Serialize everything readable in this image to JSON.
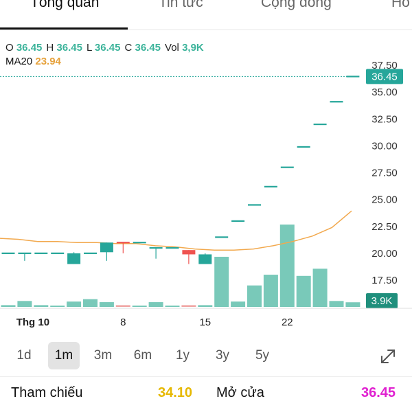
{
  "tabs": [
    {
      "label": "Tổng quan",
      "active": true
    },
    {
      "label": "Tin tức",
      "active": false
    },
    {
      "label": "Cộng đồng",
      "active": false
    },
    {
      "label": "Ho",
      "active": false
    }
  ],
  "ohlc": {
    "open_label": "O",
    "open": "36.45",
    "high_label": "H",
    "high": "36.45",
    "low_label": "L",
    "low": "36.45",
    "close_label": "C",
    "close": "36.45",
    "vol_label": "Vol",
    "vol": "3,9K"
  },
  "ma": {
    "label": "MA20",
    "value": "23.94"
  },
  "colors": {
    "up": "#26a69a",
    "up_volume": "#79c9b9",
    "down": "#ef5350",
    "down_volume": "#f1a7a6",
    "ma": "#f2a94e",
    "ohlc_value": "#3bb39a",
    "ref": "#e6b800",
    "open": "#e020d0"
  },
  "chart_data": {
    "type": "candlestick",
    "price_axis_ticks": [
      "37.50",
      "35.00",
      "32.50",
      "30.00",
      "27.50",
      "25.00",
      "22.50",
      "20.00",
      "17.50"
    ],
    "ylim": [
      16.4,
      38.3
    ],
    "x_tick_labels": [
      {
        "label": "Thg 10",
        "index": 1
      },
      {
        "label": "8",
        "index": 7
      },
      {
        "label": "15",
        "index": 12
      },
      {
        "label": "22",
        "index": 17
      }
    ],
    "last_price_label": "36.45",
    "volume_label": "3.9K",
    "candles": [
      {
        "o": 20.0,
        "h": 20.0,
        "l": 20.0,
        "c": 20.0,
        "v": 0.15
      },
      {
        "o": 20.0,
        "h": 20.0,
        "l": 19.3,
        "c": 20.0,
        "v": 0.5
      },
      {
        "o": 20.0,
        "h": 20.0,
        "l": 20.0,
        "c": 20.0,
        "v": 0.15
      },
      {
        "o": 20.0,
        "h": 20.0,
        "l": 20.0,
        "c": 20.0,
        "v": 0.1
      },
      {
        "o": 19.0,
        "h": 20.1,
        "l": 19.0,
        "c": 20.0,
        "v": 0.45
      },
      {
        "o": 20.0,
        "h": 20.0,
        "l": 20.0,
        "c": 20.0,
        "v": 0.65
      },
      {
        "o": 20.1,
        "h": 21.0,
        "l": 19.3,
        "c": 21.0,
        "v": 0.4
      },
      {
        "o": 21.0,
        "h": 21.0,
        "l": 20.0,
        "c": 21.0,
        "v": 0.15,
        "down": true
      },
      {
        "o": 21.0,
        "h": 21.0,
        "l": 21.0,
        "c": 21.0,
        "v": 0.1
      },
      {
        "o": 20.5,
        "h": 20.5,
        "l": 19.5,
        "c": 20.5,
        "v": 0.4
      },
      {
        "o": 20.5,
        "h": 20.5,
        "l": 20.5,
        "c": 20.5,
        "v": 0.05
      },
      {
        "o": 20.3,
        "h": 20.3,
        "l": 19.0,
        "c": 19.9,
        "v": 0.15,
        "down": true
      },
      {
        "o": 19.0,
        "h": 20.0,
        "l": 19.0,
        "c": 19.9,
        "v": 0.15
      },
      {
        "o": 21.5,
        "h": 21.5,
        "l": 21.5,
        "c": 21.5,
        "v": 4.2
      },
      {
        "o": 23.0,
        "h": 23.0,
        "l": 23.0,
        "c": 23.0,
        "v": 0.45
      },
      {
        "o": 24.5,
        "h": 24.5,
        "l": 24.5,
        "c": 24.5,
        "v": 1.8
      },
      {
        "o": 26.2,
        "h": 26.2,
        "l": 26.2,
        "c": 26.2,
        "v": 2.7
      },
      {
        "o": 28.0,
        "h": 28.0,
        "l": 28.0,
        "c": 28.0,
        "v": 6.9
      },
      {
        "o": 29.9,
        "h": 29.9,
        "l": 29.9,
        "c": 29.9,
        "v": 2.6
      },
      {
        "o": 32.0,
        "h": 32.0,
        "l": 32.0,
        "c": 32.0,
        "v": 3.2
      },
      {
        "o": 34.1,
        "h": 34.1,
        "l": 34.1,
        "c": 34.1,
        "v": 0.5
      },
      {
        "o": 36.45,
        "h": 36.45,
        "l": 36.45,
        "c": 36.45,
        "v": 0.39
      }
    ],
    "ma20": [
      21.4,
      21.3,
      21.1,
      21.1,
      21.0,
      21.0,
      20.9,
      20.9,
      20.7,
      20.6,
      20.4,
      20.3,
      20.3,
      20.4,
      20.7,
      21.1,
      21.6,
      22.4,
      23.94
    ]
  },
  "periods": [
    {
      "label": "1d",
      "active": false
    },
    {
      "label": "1m",
      "active": true
    },
    {
      "label": "3m",
      "active": false
    },
    {
      "label": "6m",
      "active": false
    },
    {
      "label": "1y",
      "active": false
    },
    {
      "label": "3y",
      "active": false
    },
    {
      "label": "5y",
      "active": false
    }
  ],
  "stats": {
    "ref_label": "Tham chiếu",
    "ref_value": "34.10",
    "open_label": "Mở cửa",
    "open_value": "36.45"
  }
}
